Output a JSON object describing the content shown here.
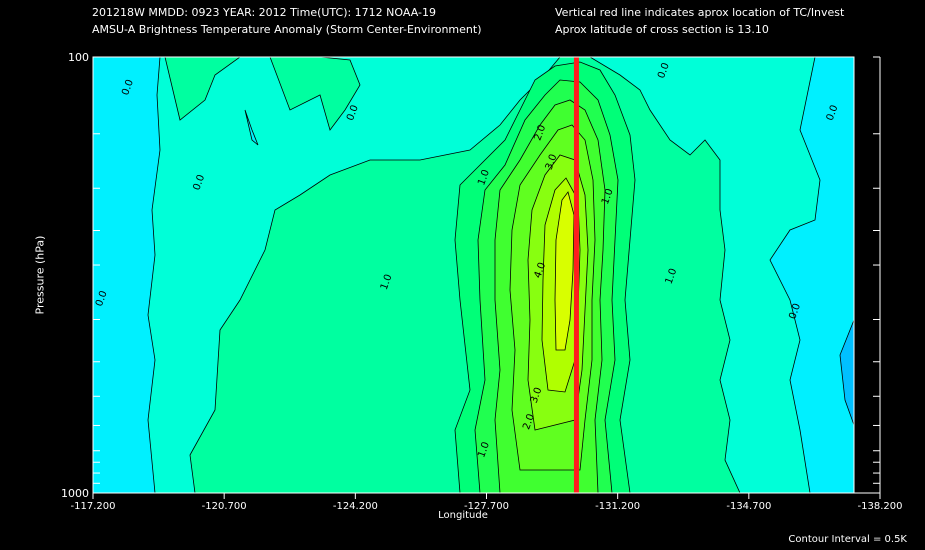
{
  "header": {
    "line1": "201218W  MMDD: 0923 YEAR: 2012 Time(UTC): 1712 NOAA-19",
    "line2": "AMSU-A Brightness Temperature Anomaly (Storm Center-Environment)",
    "line3": "Vertical red line indicates aprox location of TC/Invest",
    "line4": "Aprox latitude of cross section is 13.10"
  },
  "footer": {
    "contour_interval": "Contour Interval = 0.5K"
  },
  "chart_data": {
    "type": "heatmap",
    "subtype": "filled contour cross-section",
    "xlabel": "Longitude",
    "ylabel": "Pressure (hPa)",
    "x_ticks": [
      "-117.200",
      "-120.700",
      "-124.200",
      "-127.700",
      "-131.200",
      "-134.700",
      "-138.200"
    ],
    "x_tick_values": [
      -117.2,
      -120.7,
      -124.2,
      -127.7,
      -131.2,
      -134.7,
      -138.2
    ],
    "y_tick_labels": [
      "100",
      "1000"
    ],
    "y_tick_values": [
      100,
      150,
      200,
      250,
      300,
      400,
      500,
      600,
      700,
      800,
      850,
      900,
      950,
      1000
    ],
    "y_scale": "log",
    "xlim": [
      -117.2,
      -138.2
    ],
    "ylim": [
      1000,
      100
    ],
    "tc_longitude": -130.1,
    "tc_line_color": "#ff1e1e",
    "contour_interval_K": 0.5,
    "contour_labels": [
      {
        "text": "0.0",
        "lon": -118.2,
        "p": 118
      },
      {
        "text": "0.0",
        "lon": -120.1,
        "p": 195
      },
      {
        "text": "0.0",
        "lon": -124.2,
        "p": 135
      },
      {
        "text": "0.0",
        "lon": -117.5,
        "p": 360
      },
      {
        "text": "0.0",
        "lon": -132.5,
        "p": 108
      },
      {
        "text": "0.0",
        "lon": -137.0,
        "p": 135
      },
      {
        "text": "0.0",
        "lon": -136.0,
        "p": 385
      },
      {
        "text": "1.0",
        "lon": -127.7,
        "p": 190
      },
      {
        "text": "1.0",
        "lon": -125.1,
        "p": 330
      },
      {
        "text": "1.0",
        "lon": -127.7,
        "p": 800
      },
      {
        "text": "1.0",
        "lon": -131.0,
        "p": 210
      },
      {
        "text": "1.0",
        "lon": -132.7,
        "p": 320
      },
      {
        "text": "2.0",
        "lon": -128.9,
        "p": 690
      },
      {
        "text": "2.0",
        "lon": -129.2,
        "p": 150
      },
      {
        "text": "3.0",
        "lon": -129.5,
        "p": 175
      },
      {
        "text": "3.0",
        "lon": -129.1,
        "p": 600
      },
      {
        "text": "4.0",
        "lon": -129.2,
        "p": 310
      }
    ],
    "legend_colors": {
      "below_-1": "#00c0ff",
      "-1_to_-0.5": "#00f0ff",
      "-0.5_to_0": "#00ffd8",
      "0_to_0.5": "#00ffa0",
      "0.5_to_1": "#00ff78",
      "1_to_1.5": "#20ff50",
      "1.5_to_2": "#40ff30",
      "2_to_2.5": "#60ff20",
      "2.5_to_3": "#88ff10",
      "3_to_3.5": "#b0ff00",
      "above_3.5": "#d8ff00"
    }
  }
}
